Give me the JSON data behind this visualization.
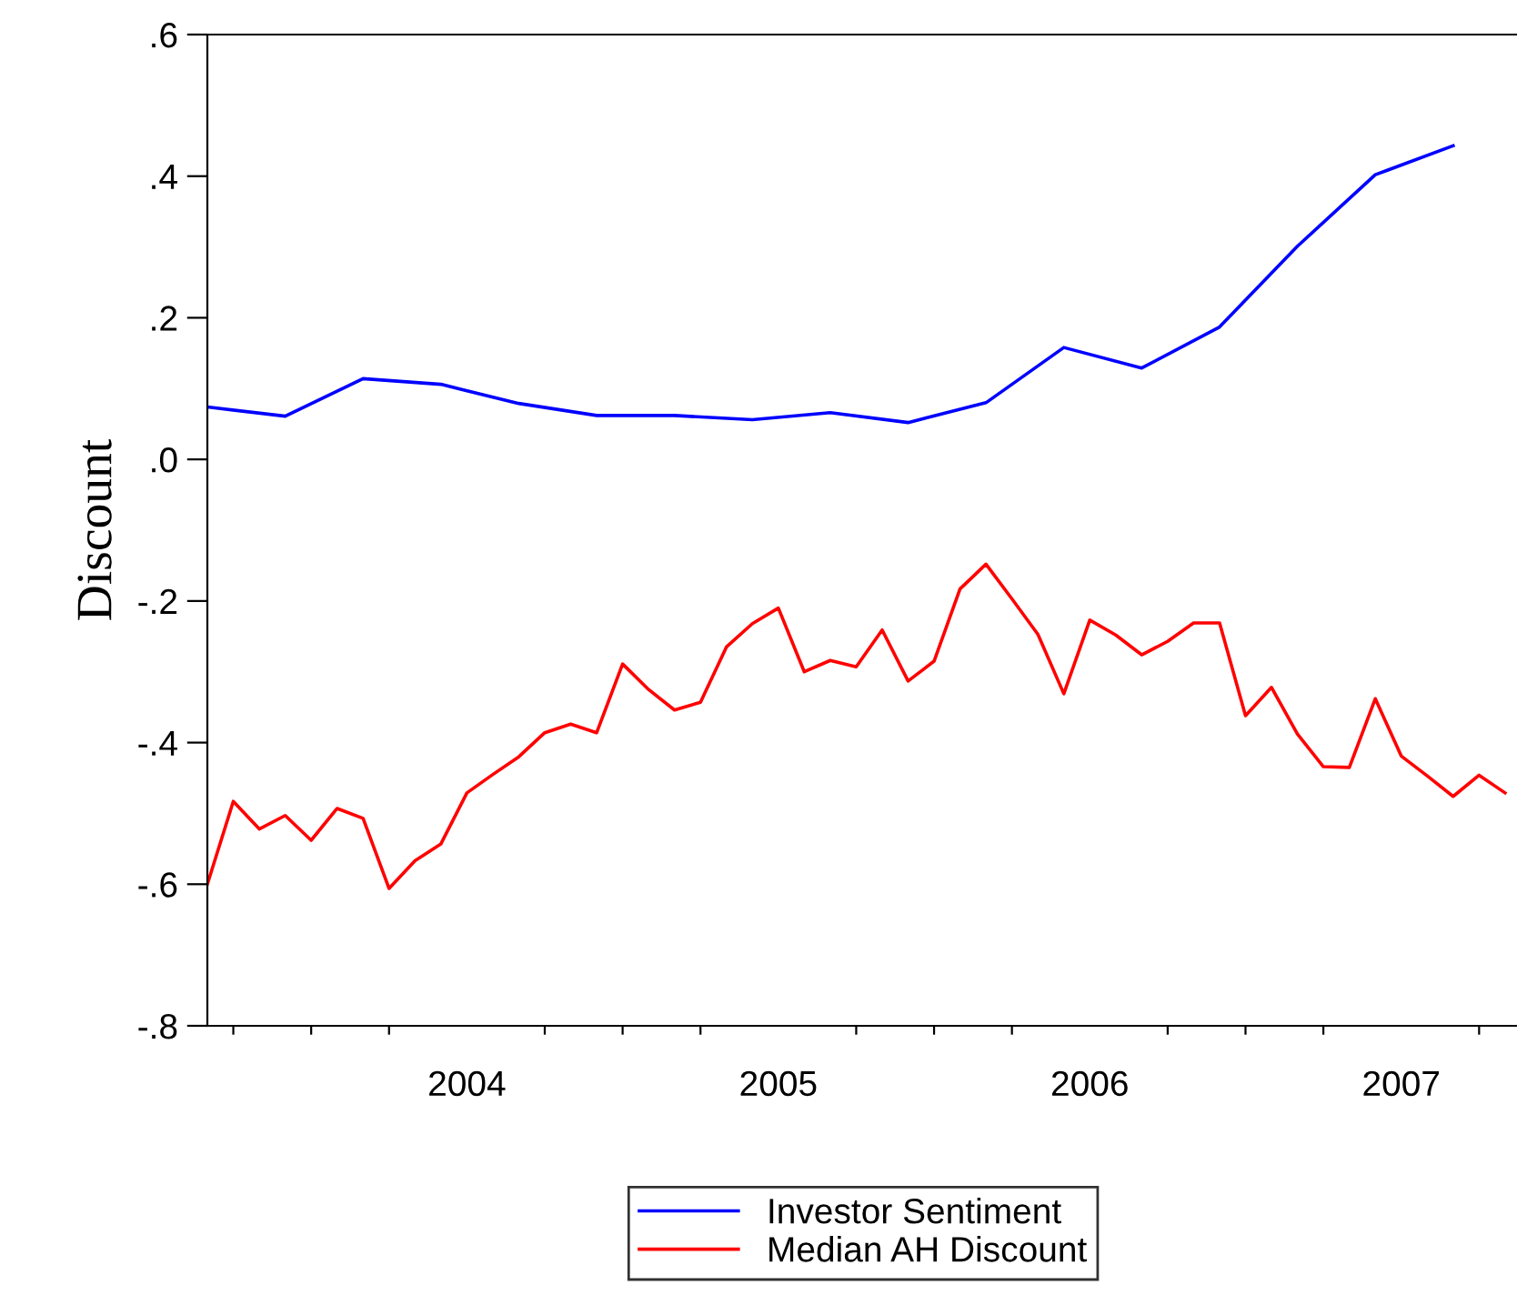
{
  "chart_data": {
    "type": "line",
    "ylabel": "Discount",
    "xlim": [
      "2003-09-01",
      "2007-11-15"
    ],
    "xticks": [
      {
        "value": "2003-10-01",
        "label": null
      },
      {
        "value": "2004-01-01",
        "label": null
      },
      {
        "value": "2004-04-01",
        "label": null
      },
      {
        "value": "2004-07-01",
        "label": "2004"
      },
      {
        "value": "2004-10-01",
        "label": null
      },
      {
        "value": "2005-01-01",
        "label": null
      },
      {
        "value": "2005-04-01",
        "label": null
      },
      {
        "value": "2005-07-01",
        "label": "2005"
      },
      {
        "value": "2005-10-01",
        "label": null
      },
      {
        "value": "2006-01-01",
        "label": null
      },
      {
        "value": "2006-04-01",
        "label": null
      },
      {
        "value": "2006-07-01",
        "label": "2006"
      },
      {
        "value": "2006-10-01",
        "label": null
      },
      {
        "value": "2007-01-01",
        "label": null
      },
      {
        "value": "2007-04-01",
        "label": null
      },
      {
        "value": "2007-07-01",
        "label": "2007"
      },
      {
        "value": "2007-10-01",
        "label": null
      }
    ],
    "ylim": [
      -0.8,
      0.6
    ],
    "yticks": [
      {
        "value": -0.8,
        "label": "-.8"
      },
      {
        "value": -0.6,
        "label": "-.6"
      },
      {
        "value": -0.4,
        "label": "-.4"
      },
      {
        "value": -0.2,
        "label": "-.2"
      },
      {
        "value": 0.0,
        "label": ".0"
      },
      {
        "value": 0.2,
        "label": ".2"
      },
      {
        "value": 0.4,
        "label": ".4"
      },
      {
        "value": 0.6,
        "label": ".6"
      }
    ],
    "grid": false,
    "legend": "bottom",
    "line_style": "solid",
    "marker": "none",
    "series": [
      {
        "name": "Investor Sentiment",
        "color": "#0000ff",
        "x": [
          "2003-09",
          "2003-12",
          "2004-03",
          "2004-06",
          "2004-09",
          "2004-12",
          "2005-03",
          "2005-06",
          "2005-09",
          "2005-12",
          "2006-03",
          "2006-06",
          "2006-09",
          "2006-12",
          "2007-03",
          "2007-06",
          "2007-09"
        ],
        "values": [
          0.074,
          0.061,
          0.114,
          0.106,
          0.079,
          0.062,
          0.062,
          0.056,
          0.066,
          0.052,
          0.08,
          0.158,
          0.129,
          0.187,
          0.301,
          0.402,
          0.443
        ]
      },
      {
        "name": "Median AH Discount",
        "color": "#ff0000",
        "x": [
          "2003-09",
          "2003-10",
          "2003-11",
          "2003-12",
          "2004-01",
          "2004-02",
          "2004-03",
          "2004-04",
          "2004-05",
          "2004-06",
          "2004-07",
          "2004-08",
          "2004-09",
          "2004-10",
          "2004-11",
          "2004-12",
          "2005-01",
          "2005-02",
          "2005-03",
          "2005-04",
          "2005-05",
          "2005-06",
          "2005-07",
          "2005-08",
          "2005-09",
          "2005-10",
          "2005-11",
          "2005-12",
          "2006-01",
          "2006-02",
          "2006-03",
          "2006-04",
          "2006-05",
          "2006-06",
          "2006-07",
          "2006-08",
          "2006-09",
          "2006-10",
          "2006-11",
          "2006-12",
          "2007-01",
          "2007-02",
          "2007-03",
          "2007-04",
          "2007-05",
          "2007-06",
          "2007-07",
          "2007-08",
          "2007-09",
          "2007-10",
          "2007-11"
        ],
        "values": [
          -0.6,
          -0.483,
          -0.522,
          -0.503,
          -0.538,
          -0.493,
          -0.507,
          -0.606,
          -0.567,
          -0.543,
          -0.471,
          -0.445,
          -0.42,
          -0.386,
          -0.374,
          -0.386,
          -0.289,
          -0.325,
          -0.354,
          -0.343,
          -0.265,
          -0.232,
          -0.21,
          -0.3,
          -0.284,
          -0.293,
          -0.241,
          -0.313,
          -0.285,
          -0.183,
          -0.148,
          -0.197,
          -0.247,
          -0.331,
          -0.227,
          -0.248,
          -0.276,
          -0.257,
          -0.231,
          -0.231,
          -0.362,
          -0.322,
          -0.388,
          -0.434,
          -0.435,
          -0.338,
          -0.419,
          -0.447,
          -0.476,
          -0.446,
          -0.471
        ]
      }
    ]
  }
}
